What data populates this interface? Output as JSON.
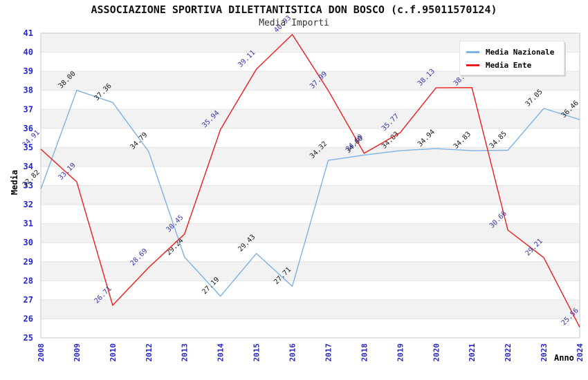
{
  "title": "ASSOCIAZIONE SPORTIVA DILETTANTISTICA DON BOSCO (c.f.95011570124)",
  "subtitle": "Media Importi",
  "axes": {
    "y_label": "Media",
    "x_label": "Anno"
  },
  "legend": {
    "position": "top-right",
    "items": [
      {
        "label": "Media Nazionale",
        "color": "#7cb2e4"
      },
      {
        "label": "Media Ente",
        "color": "#ea1c1c"
      }
    ]
  },
  "chart_data": {
    "type": "line",
    "title": "ASSOCIAZIONE SPORTIVA DILETTANTISTICA DON BOSCO (c.f.95011570124)",
    "subtitle": "Media Importi",
    "xlabel": "Anno",
    "ylabel": "Media",
    "ylim": [
      25,
      41
    ],
    "y_tick_step": 1,
    "grid": "horizontal-gridlines-with-alternating-bands",
    "legend_position": "top-right",
    "tick_color": "#2525c8",
    "band_color": "#f2f2f2",
    "gridline_color": "#e4e4e4",
    "border_color": "#c8c8c8",
    "categories": [
      "2008",
      "2009",
      "2010",
      "2012",
      "2013",
      "2014",
      "2015",
      "2016",
      "2017",
      "2018",
      "2019",
      "2020",
      "2021",
      "2022",
      "2023",
      "2024"
    ],
    "series": [
      {
        "name": "Media Nazionale",
        "color": "#7cb2e4",
        "label_color": "#1a1a1a",
        "values": [
          32.82,
          38.0,
          37.36,
          34.79,
          29.24,
          27.19,
          29.43,
          27.71,
          34.32,
          34.6,
          34.83,
          34.94,
          34.83,
          34.85,
          37.05,
          36.46
        ]
      },
      {
        "name": "Media Ente",
        "color": "#ea1c1c",
        "label_color": "#3737b4",
        "values": [
          34.91,
          33.19,
          26.71,
          28.69,
          30.45,
          35.94,
          39.11,
          40.93,
          37.99,
          34.69,
          35.77,
          38.13,
          38.14,
          30.66,
          29.21,
          25.56
        ]
      }
    ]
  }
}
